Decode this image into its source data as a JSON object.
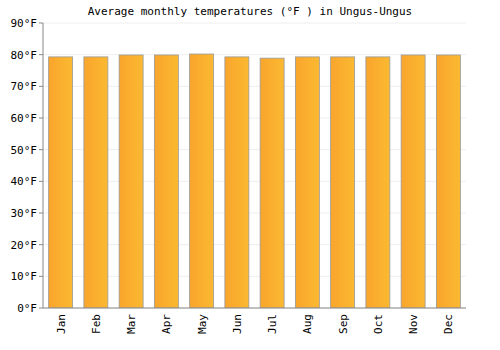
{
  "chart_data": {
    "type": "bar",
    "title": "Average monthly temperatures (°F ) in Ungus-Ungus",
    "categories": [
      "Jan",
      "Feb",
      "Mar",
      "Apr",
      "May",
      "Jun",
      "Jul",
      "Aug",
      "Sep",
      "Oct",
      "Nov",
      "Dec"
    ],
    "values": [
      79.3,
      79.3,
      79.9,
      79.9,
      80.2,
      79.3,
      78.9,
      79.3,
      79.3,
      79.3,
      79.9,
      79.9
    ],
    "color": "#f9a52c",
    "ylim": [
      0,
      90
    ],
    "yticks": [
      {
        "value": 0,
        "label": "0°F"
      },
      {
        "value": 10,
        "label": "10°F"
      },
      {
        "value": 20,
        "label": "20°F"
      },
      {
        "value": 30,
        "label": "30°F"
      },
      {
        "value": 40,
        "label": "40°F"
      },
      {
        "value": 50,
        "label": "50°F"
      },
      {
        "value": 60,
        "label": "60°F"
      },
      {
        "value": 70,
        "label": "70°F"
      },
      {
        "value": 80,
        "label": "80°F"
      },
      {
        "value": 90,
        "label": "90°F"
      }
    ],
    "grid": true
  }
}
